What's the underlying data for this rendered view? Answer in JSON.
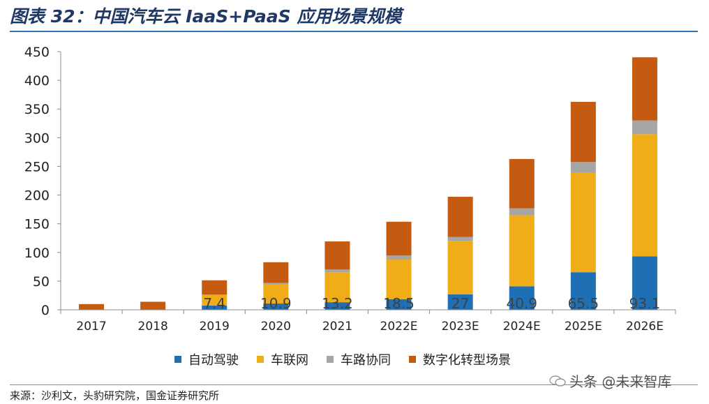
{
  "title": "图表 32：中国汽车云 IaaS+PaaS 应用场景规模",
  "source": "来源：沙利文，头豹研究院，国金证券研究所",
  "watermark": "头条 @未来智库",
  "chart_data": {
    "type": "bar",
    "stacked": true,
    "categories": [
      "2017",
      "2018",
      "2019",
      "2020",
      "2021",
      "2022E",
      "2023E",
      "2024E",
      "2025E",
      "2026E"
    ],
    "ylim": [
      0,
      450
    ],
    "yticks": [
      0,
      50,
      100,
      150,
      200,
      250,
      300,
      350,
      400,
      450
    ],
    "legend_position": "bottom",
    "series": [
      {
        "name": "自动驾驶",
        "color": "#1f6fb5",
        "values": [
          0,
          0,
          7.4,
          10.9,
          13.2,
          18.5,
          27,
          40.9,
          65.5,
          93.1
        ]
      },
      {
        "name": "车联网",
        "color": "#f0ad18",
        "values": [
          0,
          0,
          19,
          33,
          52,
          69,
          93,
          124,
          173,
          213
        ]
      },
      {
        "name": "车路协同",
        "color": "#a6a6a6",
        "values": [
          0,
          0,
          0,
          3,
          5,
          7,
          7,
          12,
          19,
          24
        ]
      },
      {
        "name": "数字化转型场景",
        "color": "#c55a11",
        "values": [
          10,
          14,
          25,
          36,
          49,
          59,
          70,
          86,
          105,
          110
        ]
      }
    ],
    "data_labels": [
      "",
      "",
      "7.4",
      "10.9",
      "13.2",
      "18.5",
      "27",
      "40.9",
      "65.5",
      "93.1"
    ]
  }
}
